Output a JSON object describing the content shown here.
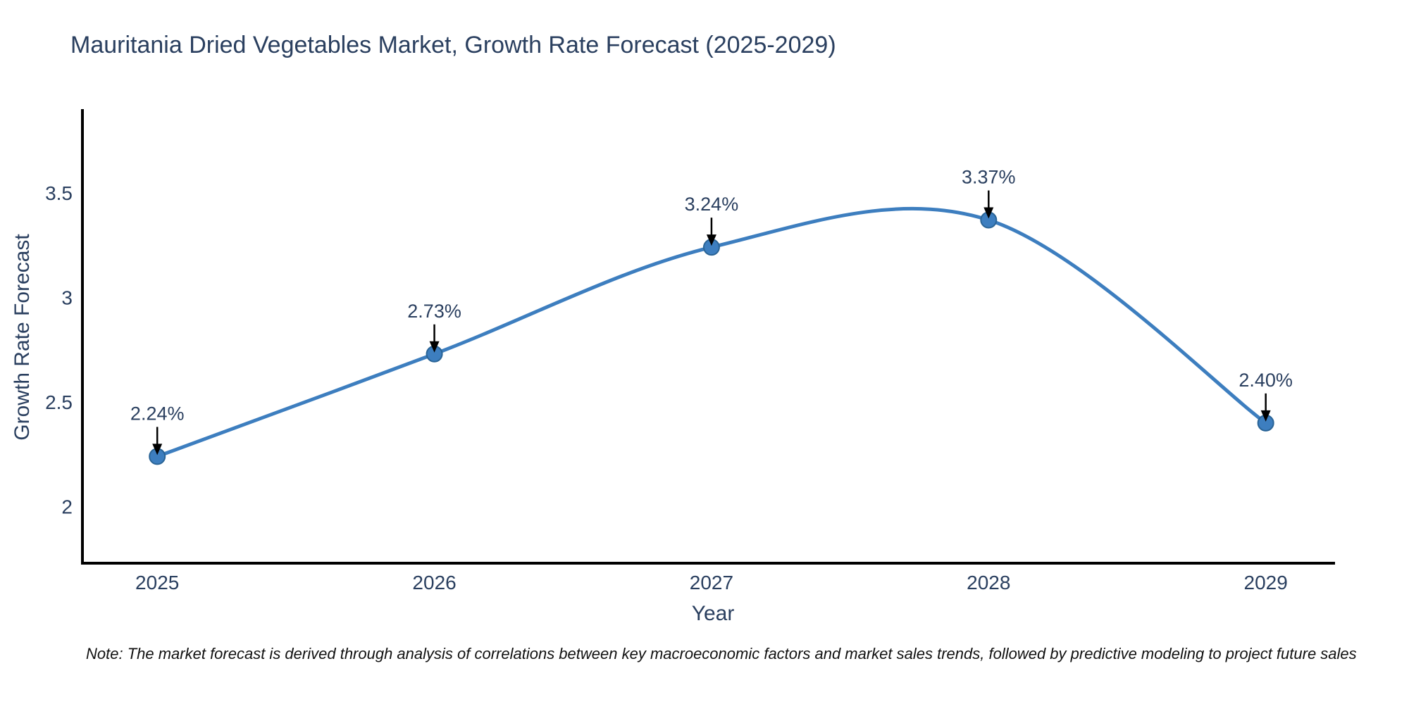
{
  "chart_data": {
    "type": "line",
    "title": "Mauritania Dried Vegetables Market, Growth Rate Forecast (2025-2029)",
    "xlabel": "Year",
    "ylabel": "Growth Rate Forecast",
    "x": [
      2025,
      2026,
      2027,
      2028,
      2029
    ],
    "series": [
      {
        "name": "Growth Rate Forecast",
        "values": [
          2.24,
          2.73,
          3.24,
          3.37,
          2.4
        ],
        "point_labels": [
          "2.24%",
          "2.73%",
          "3.24%",
          "3.37%",
          "2.40%"
        ]
      }
    ],
    "xticks": [
      "2025",
      "2026",
      "2027",
      "2028",
      "2029"
    ],
    "yticks": [
      "2",
      "2.5",
      "3",
      "3.5"
    ],
    "ytick_values": [
      2,
      2.5,
      3,
      3.5
    ],
    "xlim": [
      2024.73,
      2029.25
    ],
    "ylim": [
      1.73,
      3.9
    ],
    "line_shape": "spline",
    "grid": false,
    "legend": false,
    "colors": {
      "line": "#3d7ebf",
      "marker_fill": "#3d7ebf",
      "marker_edge": "#2a6496",
      "axis_line": "#000000",
      "text": "#2a3f5f",
      "annotation_arrow": "#000000",
      "note_text": "#111111",
      "background": "#ffffff"
    }
  },
  "note": "Note: The market forecast is derived through analysis of correlations between key macroeconomic factors and market sales trends, followed by predictive modeling to project future sales"
}
